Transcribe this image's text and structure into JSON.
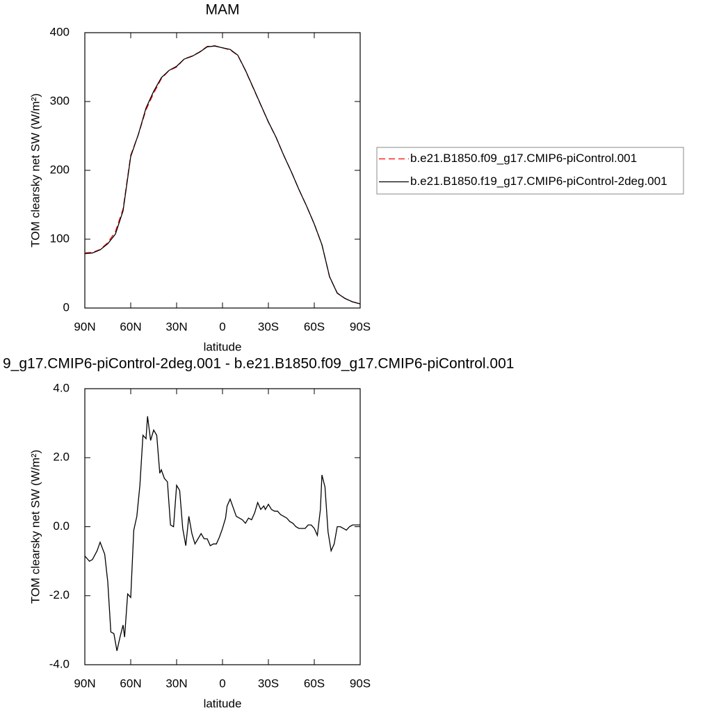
{
  "chart_data": [
    {
      "type": "line",
      "title": "MAM",
      "xlabel": "latitude",
      "ylabel": "TOM clearsky net SW (W/m²)",
      "x": [
        90,
        85,
        80,
        75,
        70,
        65,
        60,
        55,
        50,
        45,
        40,
        35,
        30,
        25,
        20,
        15,
        10,
        5,
        0,
        -5,
        -10,
        -15,
        -20,
        -25,
        -30,
        -35,
        -40,
        -45,
        -50,
        -55,
        -60,
        -65,
        -70,
        -75,
        -80,
        -85,
        -90
      ],
      "xlim": [
        90,
        -90
      ],
      "xticks": [
        {
          "value": 90,
          "label": "90N"
        },
        {
          "value": 60,
          "label": "60N"
        },
        {
          "value": 30,
          "label": "30N"
        },
        0,
        {
          "value": -30,
          "label": "30S"
        },
        {
          "value": -60,
          "label": "60S"
        },
        {
          "value": -90,
          "label": "90S"
        }
      ],
      "ylim": [
        0,
        400
      ],
      "yticks": [
        0,
        100,
        200,
        300,
        400
      ],
      "legend": "right",
      "series": [
        {
          "name": "b.e21.B1850.f09_g17.CMIP6-piControl.001",
          "color": "#ff0000",
          "dashed": true,
          "values": [
            80,
            81,
            85,
            95,
            111,
            144,
            222,
            252,
            288,
            312,
            333,
            345,
            350,
            362,
            366,
            372,
            380,
            381,
            378,
            375,
            367,
            345,
            320,
            295,
            270,
            248,
            222,
            198,
            172,
            148,
            122,
            92,
            45,
            22,
            14,
            9,
            6
          ]
        },
        {
          "name": "b.e21.B1850.f19_g17.CMIP6-piControl-2deg.001",
          "color": "#000000",
          "dashed": false,
          "values": [
            79.1,
            80,
            84.5,
            93.4,
            107.4,
            141.2,
            220,
            252.3,
            290.6,
            314.8,
            334.5,
            345.1,
            351.2,
            361.7,
            365.6,
            371.7,
            379.5,
            380.6,
            378,
            375.6,
            367.3,
            345.4,
            320.6,
            295.3,
            270.4,
            248.1,
            222,
            197.9,
            172,
            148,
            122,
            92,
            45.5,
            21.5,
            14,
            9,
            6
          ]
        }
      ]
    },
    {
      "type": "line",
      "title": "9_g17.CMIP6-piControl-2deg.001 - b.e21.B1850.f09_g17.CMIP6-piControl.001",
      "xlabel": "latitude",
      "ylabel": "TOM clearsky net SW (W/m²)",
      "color": "#000000",
      "x": [
        90,
        87,
        85,
        82,
        80,
        77,
        75,
        73,
        71,
        69,
        67,
        65,
        64,
        62,
        60,
        58,
        56,
        54,
        52,
        50,
        49,
        47,
        45,
        43,
        41,
        40,
        38,
        36,
        34,
        32,
        30,
        28,
        26,
        24,
        22,
        20,
        18,
        16,
        14,
        12,
        10,
        8,
        6,
        4,
        2,
        0,
        -2,
        -3,
        -5,
        -7,
        -9,
        -11,
        -13,
        -15,
        -17,
        -19,
        -21,
        -23,
        -25,
        -27,
        -28,
        -30,
        -32,
        -34,
        -36,
        -38,
        -40,
        -42,
        -44,
        -46,
        -48,
        -50,
        -52,
        -54,
        -56,
        -58,
        -60,
        -62,
        -64,
        -65,
        -67,
        -69,
        -71,
        -73,
        -75,
        -77,
        -79,
        -81,
        -83,
        -85,
        -90
      ],
      "values": [
        -0.85,
        -1.0,
        -0.95,
        -0.7,
        -0.45,
        -0.8,
        -1.6,
        -3.05,
        -3.1,
        -3.6,
        -3.2,
        -2.85,
        -3.2,
        -1.95,
        -2.05,
        -0.1,
        0.3,
        1.2,
        2.65,
        2.55,
        3.2,
        2.5,
        2.8,
        2.65,
        1.55,
        1.65,
        1.4,
        1.3,
        0.05,
        0.0,
        1.2,
        1.05,
        -0.05,
        -0.55,
        0.3,
        -0.2,
        -0.5,
        -0.35,
        -0.2,
        -0.35,
        -0.35,
        -0.55,
        -0.5,
        -0.5,
        -0.3,
        -0.05,
        0.25,
        0.6,
        0.8,
        0.55,
        0.3,
        0.25,
        0.2,
        0.1,
        0.25,
        0.2,
        0.4,
        0.7,
        0.5,
        0.6,
        0.5,
        0.65,
        0.5,
        0.45,
        0.45,
        0.35,
        0.3,
        0.25,
        0.15,
        0.1,
        0.0,
        -0.05,
        -0.05,
        -0.05,
        0.05,
        0.05,
        -0.05,
        -0.25,
        0.5,
        1.5,
        1.15,
        -0.15,
        -0.7,
        -0.5,
        0.0,
        0.0,
        -0.05,
        -0.1,
        0.0,
        0.05,
        0.05
      ],
      "xlim": [
        90,
        -90
      ],
      "xticks": [
        {
          "value": 90,
          "label": "90N"
        },
        {
          "value": 60,
          "label": "60N"
        },
        {
          "value": 30,
          "label": "30N"
        },
        0,
        {
          "value": -30,
          "label": "30S"
        },
        {
          "value": -60,
          "label": "60S"
        },
        {
          "value": -90,
          "label": "90S"
        }
      ],
      "ylim": [
        -4,
        4
      ],
      "yticks": [
        {
          "value": -4,
          "label": "-4.0"
        },
        {
          "value": -2,
          "label": "-2.0"
        },
        {
          "value": 0,
          "label": "0.0"
        },
        {
          "value": 2,
          "label": "2.0"
        },
        {
          "value": 4,
          "label": "4.0"
        }
      ]
    }
  ]
}
